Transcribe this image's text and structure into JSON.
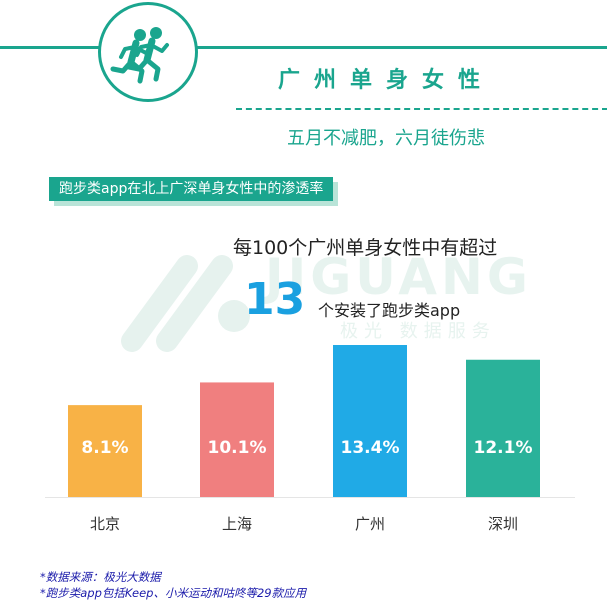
{
  "header": {
    "title": "广州单身女性",
    "subtitle": "五月不减肥，六月徒伤悲"
  },
  "section_label": "跑步类app在北上广深单身女性中的渗透率",
  "watermark": {
    "brand": "JIGUANG",
    "sub": "极光 数据服务"
  },
  "headline": {
    "line1": "每100个广州单身女性中有超过",
    "number": "13",
    "line2": "个安装了跑步类app"
  },
  "chart_data": {
    "type": "bar",
    "categories": [
      "北京",
      "上海",
      "广州",
      "深圳"
    ],
    "values": [
      8.1,
      10.1,
      13.4,
      12.1
    ],
    "value_labels": [
      "8.1%",
      "10.1%",
      "13.4%",
      "12.1%"
    ],
    "colors": [
      "#f8b246",
      "#f07f7f",
      "#20aae6",
      "#2ab29a"
    ],
    "ylim": [
      0,
      13.4
    ],
    "grid": false
  },
  "footnotes": [
    "*数据来源：极光大数据",
    "*跑步类app包括Keep、小米运动和咕咚等29款应用"
  ],
  "colors": {
    "accent": "#1aa58e",
    "number": "#1aa0e0"
  },
  "icon": "runners-icon"
}
